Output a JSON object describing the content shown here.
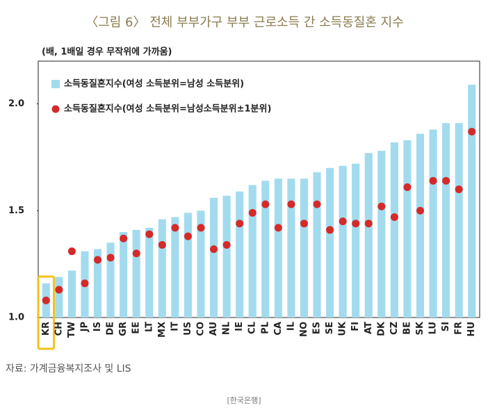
{
  "chart_data": {
    "type": "bar",
    "title": "〈그림 6〉 전체 부부가구 부부 근로소득 간 소득동질혼 지수",
    "unit_note": "(배, 1배일 경우 무작위에 가까움)",
    "categories": [
      "KR",
      "CH",
      "TW",
      "JP",
      "IS",
      "DE",
      "GR",
      "EE",
      "LT",
      "MX",
      "IT",
      "US",
      "CO",
      "AU",
      "NL",
      "IE",
      "CL",
      "PL",
      "CA",
      "IL",
      "NO",
      "ES",
      "SE",
      "UK",
      "FI",
      "AT",
      "DK",
      "CZ",
      "BE",
      "SK",
      "LU",
      "SI",
      "FR",
      "HU"
    ],
    "series": [
      {
        "name": "소득동질혼지수(여성 소득분위=남성 소득분위)",
        "type": "bar",
        "color": "#a3dbee",
        "values": [
          1.16,
          1.19,
          1.22,
          1.31,
          1.32,
          1.35,
          1.4,
          1.41,
          1.42,
          1.46,
          1.47,
          1.49,
          1.5,
          1.56,
          1.57,
          1.59,
          1.62,
          1.64,
          1.65,
          1.65,
          1.65,
          1.68,
          1.7,
          1.71,
          1.72,
          1.77,
          1.78,
          1.82,
          1.83,
          1.86,
          1.88,
          1.91,
          1.91,
          2.09
        ]
      },
      {
        "name": "소득동질혼지수(여성 소득분위=남성소득분위±1분위)",
        "type": "scatter",
        "color": "#d42a2a",
        "values": [
          1.08,
          1.13,
          1.31,
          1.16,
          1.27,
          1.28,
          1.37,
          1.3,
          1.39,
          1.34,
          1.42,
          1.38,
          1.42,
          1.32,
          1.34,
          1.44,
          1.49,
          1.53,
          1.42,
          1.53,
          1.44,
          1.53,
          1.41,
          1.45,
          1.44,
          1.44,
          1.52,
          1.47,
          1.61,
          1.5,
          1.64,
          1.64,
          1.6,
          1.87
        ]
      }
    ],
    "highlight_color": "#f2c21b",
    "ylim": [
      1.0,
      2.2
    ],
    "yticks": [
      {
        "value": 1,
        "label": "1.0"
      },
      1.5,
      {
        "value": 2,
        "label": "2.0"
      }
    ],
    "grid": false,
    "source": "자료: 가계금융복지조사 및 LIS",
    "footer": "[한국은행]"
  }
}
